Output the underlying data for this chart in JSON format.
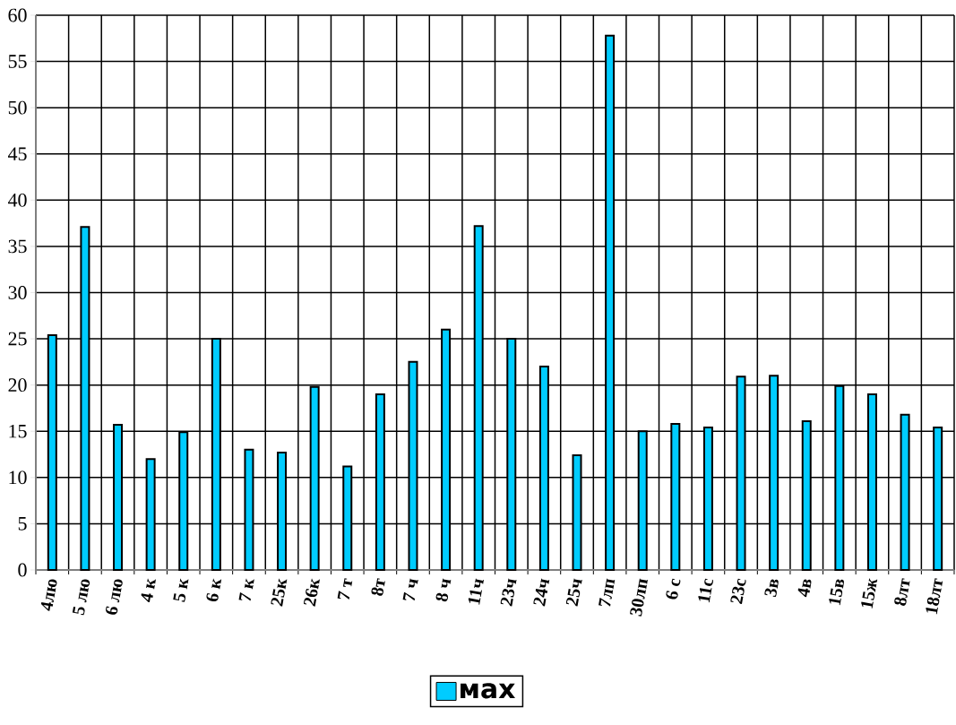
{
  "chart_data": {
    "type": "bar",
    "categories": [
      "4лю",
      "5 лю",
      "6 лю",
      "4 к",
      "5 к",
      "6 к",
      "7 к",
      "25к",
      "26к",
      "7 т",
      "8т",
      "7 ч",
      "8 ч",
      "11ч",
      "23ч",
      "24ч",
      "25ч",
      "7лп",
      "30лп",
      "6 с",
      "11с",
      "23с",
      "3в",
      "4в",
      "15в",
      "15ж",
      "8лт",
      "18лт"
    ],
    "series": [
      {
        "name": "мах",
        "color": "#00ccff",
        "values": [
          25.4,
          37.1,
          15.7,
          12,
          14.9,
          25,
          13,
          12.7,
          19.8,
          11.2,
          19,
          22.5,
          26,
          37.2,
          25,
          22,
          12.4,
          57.8,
          15,
          15.8,
          15.4,
          20.9,
          21,
          16.1,
          19.9,
          19,
          16.8,
          15.4
        ]
      }
    ],
    "ylim": [
      0,
      60
    ],
    "yticks": [
      0,
      5,
      10,
      15,
      20,
      25,
      30,
      35,
      40,
      45,
      50,
      55,
      60
    ],
    "grid": true,
    "legend": "bottom"
  }
}
